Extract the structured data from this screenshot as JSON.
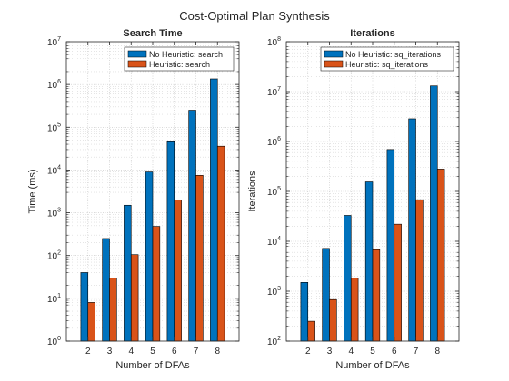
{
  "figure": {
    "title": "Cost-Optimal Plan Synthesis"
  },
  "chart_data": [
    {
      "type": "bar",
      "title": "Search Time",
      "xlabel": "Number of DFAs",
      "ylabel": "Time (ms)",
      "yscale": "log",
      "ylim": [
        1,
        10000000
      ],
      "categories": [
        "2",
        "3",
        "4",
        "5",
        "6",
        "7",
        "8"
      ],
      "series": [
        {
          "name": "No Heuristic: search",
          "color": "#0072BD",
          "values": [
            40,
            250,
            1500,
            9000,
            48000,
            250000,
            1350000
          ]
        },
        {
          "name": "Heuristic: search",
          "color": "#D95319",
          "values": [
            8,
            30,
            105,
            480,
            2000,
            7500,
            36000
          ]
        }
      ],
      "legend": "top-right",
      "grid": true
    },
    {
      "type": "bar",
      "title": "Iterations",
      "xlabel": "Number of DFAs",
      "ylabel": "Iterations",
      "yscale": "log",
      "ylim": [
        100,
        100000000
      ],
      "categories": [
        "2",
        "3",
        "4",
        "5",
        "6",
        "7",
        "8"
      ],
      "series": [
        {
          "name": "No Heuristic: sq_iterations",
          "color": "#0072BD",
          "values": [
            1500,
            7200,
            33000,
            155000,
            690000,
            2850000,
            13000000
          ]
        },
        {
          "name": "Heuristic: sq_iterations",
          "color": "#D95319",
          "values": [
            250,
            680,
            1850,
            6800,
            22000,
            68000,
            280000
          ]
        }
      ],
      "legend": "top-right",
      "grid": true
    }
  ]
}
